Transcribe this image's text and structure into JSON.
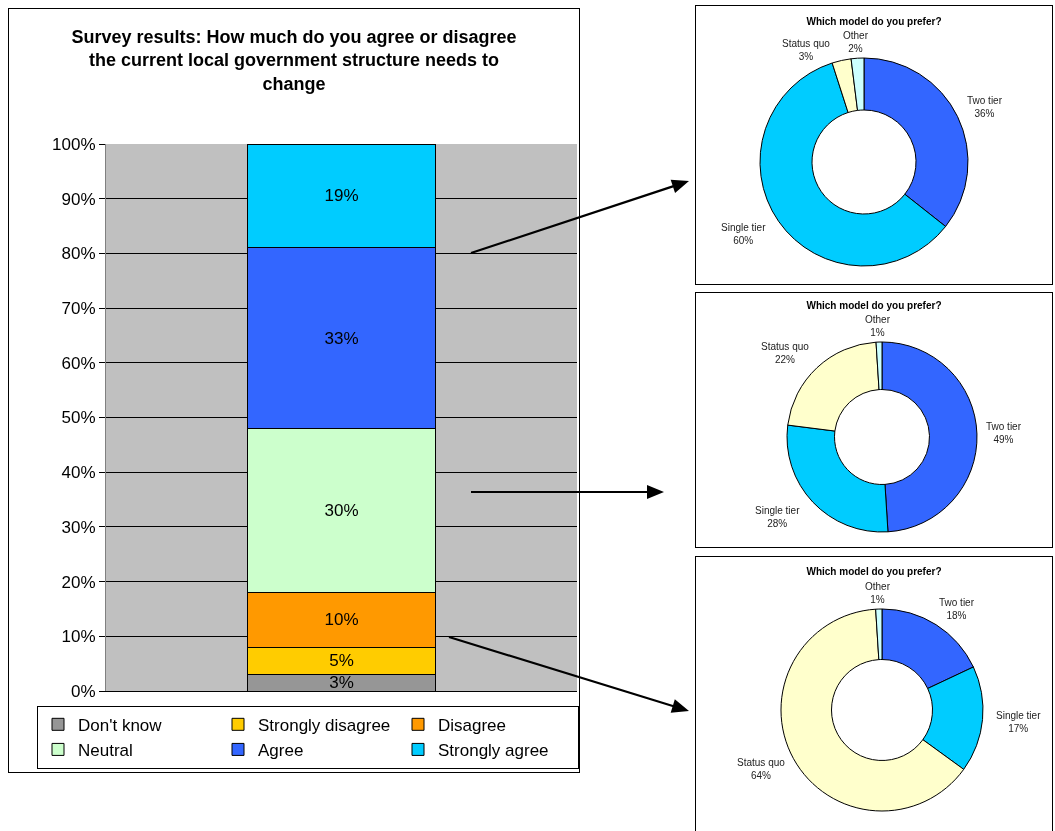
{
  "chart_data": [
    {
      "type": "bar",
      "title": "Survey results: How much do you agree or disagree the current local government structure needs to change",
      "categories": [
        null
      ],
      "stacked": true,
      "series": [
        {
          "name": "Don't know",
          "color": "#969696",
          "values": [
            3
          ],
          "value_labels": [
            "3%"
          ]
        },
        {
          "name": "Strongly disagree",
          "color": "#ffcc00",
          "values": [
            5
          ],
          "value_labels": [
            "5%"
          ]
        },
        {
          "name": "Disagree",
          "color": "#ff9900",
          "values": [
            10
          ],
          "value_labels": [
            "10%"
          ]
        },
        {
          "name": "Neutral",
          "color": "#ccffcc",
          "values": [
            30
          ],
          "value_labels": [
            "30%"
          ]
        },
        {
          "name": "Agree",
          "color": "#3366ff",
          "values": [
            33
          ],
          "value_labels": [
            "33%"
          ]
        },
        {
          "name": "Strongly agree",
          "color": "#00ccff",
          "values": [
            19
          ],
          "value_labels": [
            "19%"
          ]
        }
      ],
      "ylim": [
        0,
        100
      ],
      "yticks": [
        {
          "value": 0,
          "label": "0%"
        },
        {
          "value": 10,
          "label": "10%"
        },
        {
          "value": 20,
          "label": "20%"
        },
        {
          "value": 30,
          "label": "30%"
        },
        {
          "value": 40,
          "label": "40%"
        },
        {
          "value": 50,
          "label": "50%"
        },
        {
          "value": 60,
          "label": "60%"
        },
        {
          "value": 70,
          "label": "70%"
        },
        {
          "value": 80,
          "label": "80%"
        },
        {
          "value": 90,
          "label": "90%"
        },
        {
          "value": 100,
          "label": "100%"
        }
      ],
      "grid": "y",
      "legend": "bottom"
    },
    {
      "type": "donut",
      "title": "Which model do you prefer?",
      "categories": [
        "Two tier",
        "Single tier",
        "Status quo",
        "Other"
      ],
      "values": [
        36,
        60,
        3,
        2
      ],
      "value_labels": [
        "36%",
        "60%",
        "3%",
        "2%"
      ],
      "colors": [
        "#3366ff",
        "#00ccff",
        "#ffffcc",
        "#ccffff"
      ]
    },
    {
      "type": "donut",
      "title": "Which model do you prefer?",
      "categories": [
        "Two tier",
        "Single tier",
        "Status quo",
        "Other"
      ],
      "values": [
        49,
        28,
        22,
        1
      ],
      "value_labels": [
        "49%",
        "28%",
        "22%",
        "1%"
      ],
      "colors": [
        "#3366ff",
        "#00ccff",
        "#ffffcc",
        "#ccffff"
      ]
    },
    {
      "type": "donut",
      "title": "Which model do you prefer?",
      "categories": [
        "Two tier",
        "Single tier",
        "Status quo",
        "Other"
      ],
      "values": [
        18,
        17,
        64,
        1
      ],
      "value_labels": [
        "18%",
        "17%",
        "64%",
        "1%"
      ],
      "colors": [
        "#3366ff",
        "#00ccff",
        "#ffffcc",
        "#ccffff"
      ]
    }
  ]
}
